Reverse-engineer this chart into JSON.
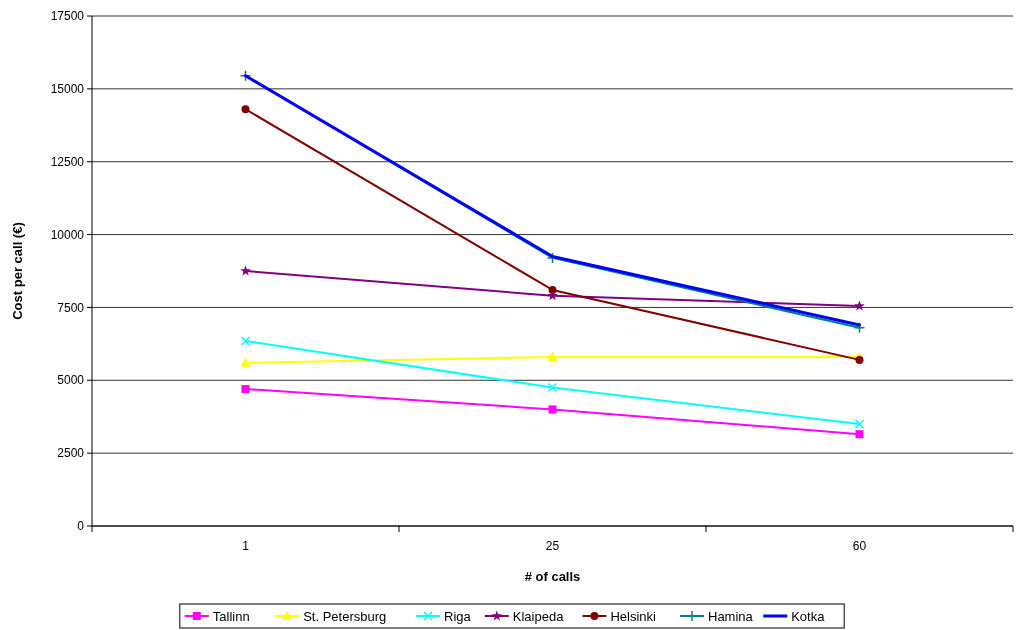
{
  "chart_data": {
    "type": "line",
    "xlabel": "# of calls",
    "ylabel": "Cost per call (€)",
    "categories": [
      "1",
      "25",
      "60"
    ],
    "ylim": [
      0,
      17500
    ],
    "yticks": [
      0,
      2500,
      5000,
      7500,
      10000,
      12500,
      15000,
      17500
    ],
    "grid": "y",
    "legend": "bottom",
    "series": [
      {
        "name": "Tallinn",
        "color": "#ff00ff",
        "marker": "square",
        "values": [
          4700,
          4000,
          3150
        ]
      },
      {
        "name": "St. Petersburg",
        "color": "#ffff00",
        "marker": "triangle",
        "values": [
          5600,
          5800,
          5800
        ]
      },
      {
        "name": "Riga",
        "color": "#00ffff",
        "marker": "cross",
        "values": [
          6350,
          4750,
          3500
        ]
      },
      {
        "name": "Klaipeda",
        "color": "#800080",
        "marker": "star",
        "values": [
          8750,
          7900,
          7550
        ]
      },
      {
        "name": "Helsinki",
        "color": "#800000",
        "marker": "circle",
        "values": [
          14300,
          8100,
          5700
        ]
      },
      {
        "name": "Hamina",
        "color": "#008080",
        "marker": "plus",
        "values": [
          15450,
          9200,
          6800
        ]
      },
      {
        "name": "Kotka",
        "color": "#0000ff",
        "marker": "none",
        "values": [
          15450,
          9250,
          6900
        ]
      }
    ]
  }
}
